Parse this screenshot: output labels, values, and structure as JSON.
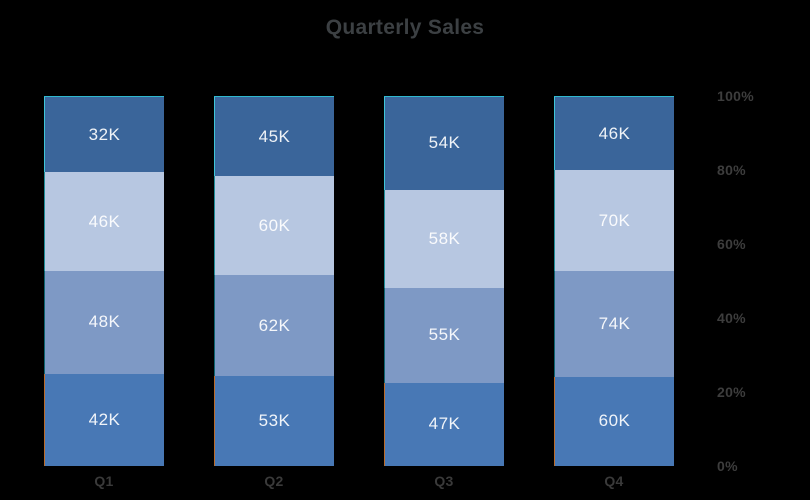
{
  "page": {
    "background_color": "#000000"
  },
  "header": {
    "title": "Quarterly Sales"
  },
  "colors": {
    "title_text": "#3c4043",
    "category_label_text": "#3a3a3a",
    "tick_label_text": "#3d3d3d",
    "value_label_text": "rgba(255,255,255,0.92)",
    "bar_top_edge": "#2fb9cf"
  },
  "chart_data": {
    "type": "bar",
    "variant": "stacked-100-percent",
    "title": "Quarterly Sales",
    "categories": [
      "Q1",
      "Q2",
      "Q3",
      "Q4"
    ],
    "series": [
      {
        "name": "segment-top",
        "color": "#3a659a",
        "edge_color": "#3ec6d8",
        "values": [
          32,
          45,
          54,
          46
        ],
        "labels": [
          "32K",
          "45K",
          "54K",
          "46K"
        ]
      },
      {
        "name": "segment-upper-middle",
        "color": "#b7c7e1",
        "edge_color": "#1e8e98",
        "values": [
          46,
          60,
          58,
          70
        ],
        "labels": [
          "46K",
          "60K",
          "58K",
          "70K"
        ]
      },
      {
        "name": "segment-lower-middle",
        "color": "#7e99c5",
        "edge_color": "#0d6570",
        "values": [
          48,
          62,
          55,
          74
        ],
        "labels": [
          "48K",
          "62K",
          "55K",
          "74K"
        ]
      },
      {
        "name": "segment-bottom",
        "color": "#4878b5",
        "edge_color": "#b96b2a",
        "values": [
          42,
          53,
          47,
          60
        ],
        "labels": [
          "42K",
          "53K",
          "47K",
          "60K"
        ]
      }
    ],
    "value_suffix": "K",
    "xlabel": "",
    "ylabel": "",
    "y_axis": {
      "position": "right",
      "ticks": [
        "100%",
        "80%",
        "60%",
        "40%",
        "20%",
        "0%"
      ],
      "range_percent": [
        0,
        100
      ]
    },
    "legend": "none",
    "grid": "off"
  }
}
